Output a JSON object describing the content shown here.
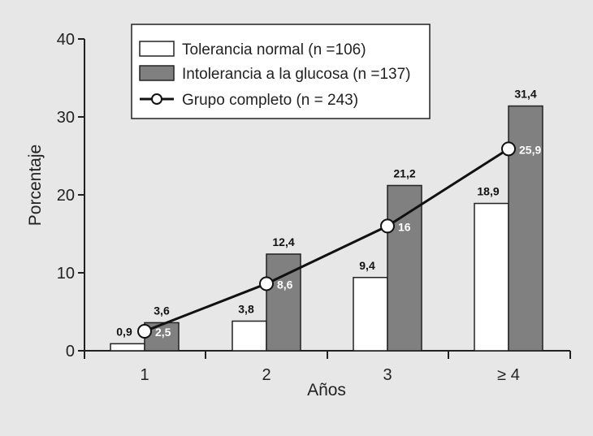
{
  "chart_data": {
    "type": "bar",
    "categories": [
      "1",
      "2",
      "3",
      "≥ 4"
    ],
    "xlabel": "Años",
    "ylabel": "Porcentaje",
    "ylim": [
      0,
      40
    ],
    "yticks": [
      0,
      10,
      20,
      30,
      40
    ],
    "legend_position": "top",
    "grid": false,
    "series": [
      {
        "name": "Tolerancia normal (n =106)",
        "kind": "bar",
        "color": "#ffffff",
        "values": [
          0.9,
          3.8,
          9.4,
          18.9
        ],
        "labels": [
          "0,9",
          "3,8",
          "9,4",
          "18,9"
        ]
      },
      {
        "name": "Intolerancia a la glucosa (n =137)",
        "kind": "bar",
        "color": "#808080",
        "values": [
          3.6,
          12.4,
          21.2,
          31.4
        ],
        "labels": [
          "3,6",
          "12,4",
          "21,2",
          "31,4"
        ]
      },
      {
        "name": "Grupo completo (n = 243)",
        "kind": "line",
        "color": "#111111",
        "values": [
          2.5,
          8.6,
          16,
          25.9
        ],
        "labels": [
          "2,5",
          "8,6",
          "16",
          "25,9"
        ]
      }
    ]
  }
}
